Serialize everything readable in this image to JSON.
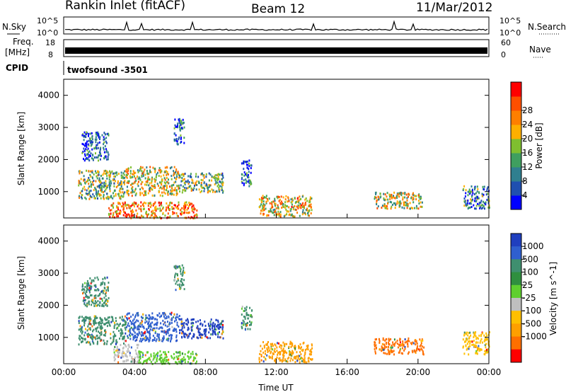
{
  "header": {
    "station": "Rankin Inlet (fitACF)",
    "beam": "Beam 12",
    "date": "11/Mar/2012"
  },
  "top_panels": {
    "nsky_label": "N.Sky",
    "nsky_ticks": [
      "10^5",
      "10^0"
    ],
    "nsearch_label": "N.Search",
    "nsearch_ticks": [
      "10^5",
      "10^0"
    ],
    "freq_label": "Freq.",
    "freq_unit": "[MHz]",
    "freq_ticks": [
      "18",
      "8"
    ],
    "nave_label": "Nave",
    "nave_ticks": [
      "60",
      "0"
    ],
    "cpid_label": "CPID",
    "cpid_value": "twofsound -3501"
  },
  "chart_data": [
    {
      "type": "heatmap",
      "name": "power",
      "ylabel": "Slant Range [km]",
      "ylim": [
        180,
        4500
      ],
      "yticks": [
        1000,
        2000,
        3000,
        4000
      ],
      "xlim": [
        0,
        24
      ],
      "colorbar_label": "Power [dB]",
      "colorbar_ticks": [
        "4",
        "8",
        "12",
        "16",
        "20",
        "24",
        "28"
      ],
      "colorbar_colors": [
        "#0000ff",
        "#1f4fb0",
        "#2f7f8f",
        "#3f9f5f",
        "#7fbf2f",
        "#ffaf00",
        "#ff7f00",
        "#ff4f00",
        "#ff0000"
      ],
      "regions": [
        {
          "t0": 0.8,
          "t1": 3.5,
          "r0": 800,
          "r1": 1700,
          "level": 0.45
        },
        {
          "t0": 3.5,
          "t1": 6.5,
          "r0": 900,
          "r1": 1800,
          "level": 0.55
        },
        {
          "t0": 6.5,
          "t1": 9.0,
          "r0": 1000,
          "r1": 1600,
          "level": 0.4
        },
        {
          "t0": 2.5,
          "t1": 7.5,
          "r0": 200,
          "r1": 700,
          "level": 0.75
        },
        {
          "t0": 1.0,
          "t1": 2.5,
          "r0": 2000,
          "r1": 2900,
          "level": 0.2
        },
        {
          "t0": 6.2,
          "t1": 6.8,
          "r0": 2500,
          "r1": 3300,
          "level": 0.2
        },
        {
          "t0": 10.0,
          "t1": 10.6,
          "r0": 1200,
          "r1": 2000,
          "level": 0.2
        },
        {
          "t0": 11.0,
          "t1": 14.0,
          "r0": 250,
          "r1": 900,
          "level": 0.6
        },
        {
          "t0": 17.5,
          "t1": 20.3,
          "r0": 500,
          "r1": 1000,
          "level": 0.55
        },
        {
          "t0": 22.5,
          "t1": 24.0,
          "r0": 500,
          "r1": 1200,
          "level": 0.3
        }
      ]
    },
    {
      "type": "heatmap",
      "name": "velocity",
      "ylabel": "Slant Range [km]",
      "ylim": [
        180,
        4500
      ],
      "yticks": [
        1000,
        2000,
        3000,
        4000
      ],
      "xlim": [
        0,
        24
      ],
      "xticks": [
        "00:00",
        "04:00",
        "08:00",
        "12:00",
        "16:00",
        "20:00",
        "00:00"
      ],
      "xlabel": "Time UT",
      "colorbar_label": "Velocity [m s^-1]",
      "colorbar_ticks": [
        "1000",
        "500",
        "100",
        "25",
        "-25",
        "-100",
        "-500",
        "-1000"
      ],
      "colorbar_colors": [
        "#1f3fbf",
        "#2f5fcf",
        "#3f8f6f",
        "#2f8f3f",
        "#5fcf2f",
        "#bfbfbf",
        "#ffbf00",
        "#ff9f00",
        "#ff6f00",
        "#ff0000"
      ],
      "regions": [
        {
          "t0": 0.8,
          "t1": 3.5,
          "r0": 800,
          "r1": 1700,
          "color": "#3f8f6f"
        },
        {
          "t0": 3.5,
          "t1": 6.5,
          "r0": 900,
          "r1": 1800,
          "color": "#2f5fcf"
        },
        {
          "t0": 6.5,
          "t1": 9.0,
          "r0": 1000,
          "r1": 1600,
          "color": "#1f3fbf"
        },
        {
          "t0": 2.8,
          "t1": 4.2,
          "r0": 250,
          "r1": 800,
          "color": "#bfbfbf"
        },
        {
          "t0": 4.2,
          "t1": 7.5,
          "r0": 200,
          "r1": 600,
          "color": "#5fcf2f"
        },
        {
          "t0": 1.0,
          "t1": 2.5,
          "r0": 2000,
          "r1": 2900,
          "color": "#3f8f6f"
        },
        {
          "t0": 6.2,
          "t1": 6.8,
          "r0": 2500,
          "r1": 3300,
          "color": "#3f8f6f"
        },
        {
          "t0": 10.0,
          "t1": 10.6,
          "r0": 1200,
          "r1": 2000,
          "color": "#3f8f6f"
        },
        {
          "t0": 11.0,
          "t1": 14.0,
          "r0": 250,
          "r1": 900,
          "color": "#ff9f00"
        },
        {
          "t0": 17.5,
          "t1": 20.3,
          "r0": 500,
          "r1": 1000,
          "color": "#ff6f00"
        },
        {
          "t0": 22.5,
          "t1": 24.0,
          "r0": 500,
          "r1": 1200,
          "color": "#ffbf00"
        }
      ]
    }
  ]
}
